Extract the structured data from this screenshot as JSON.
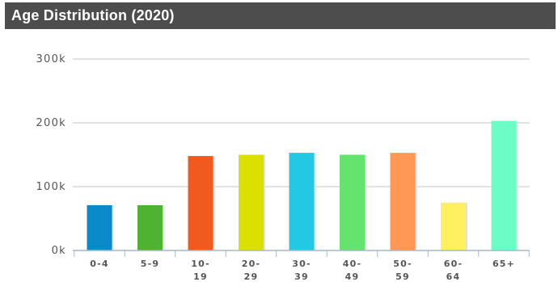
{
  "chart_data": {
    "type": "bar",
    "title": "Age Distribution (2020)",
    "categories": [
      {
        "line1": "0-4",
        "line2": ""
      },
      {
        "line1": "5-9",
        "line2": ""
      },
      {
        "line1": "10-",
        "line2": "19"
      },
      {
        "line1": "20-",
        "line2": "29"
      },
      {
        "line1": "30-",
        "line2": "39"
      },
      {
        "line1": "40-",
        "line2": "49"
      },
      {
        "line1": "50-",
        "line2": "59"
      },
      {
        "line1": "60-",
        "line2": "64"
      },
      {
        "line1": "65+",
        "line2": ""
      }
    ],
    "values": [
      71000,
      71000,
      148000,
      150000,
      153000,
      150000,
      153000,
      75000,
      203000
    ],
    "colors": [
      "#0a8ac8",
      "#4fb231",
      "#f05a1e",
      "#dce000",
      "#22c8e4",
      "#64e46e",
      "#ff9854",
      "#fff060",
      "#6cfcc6"
    ],
    "ylim": [
      0,
      300000
    ],
    "yticks": [
      {
        "value": 0,
        "label": "0k"
      },
      {
        "value": 100000,
        "label": "100k"
      },
      {
        "value": 200000,
        "label": "200k"
      },
      {
        "value": 300000,
        "label": "300k"
      }
    ],
    "grid": true,
    "legend": "none",
    "xlabel": "",
    "ylabel": ""
  }
}
